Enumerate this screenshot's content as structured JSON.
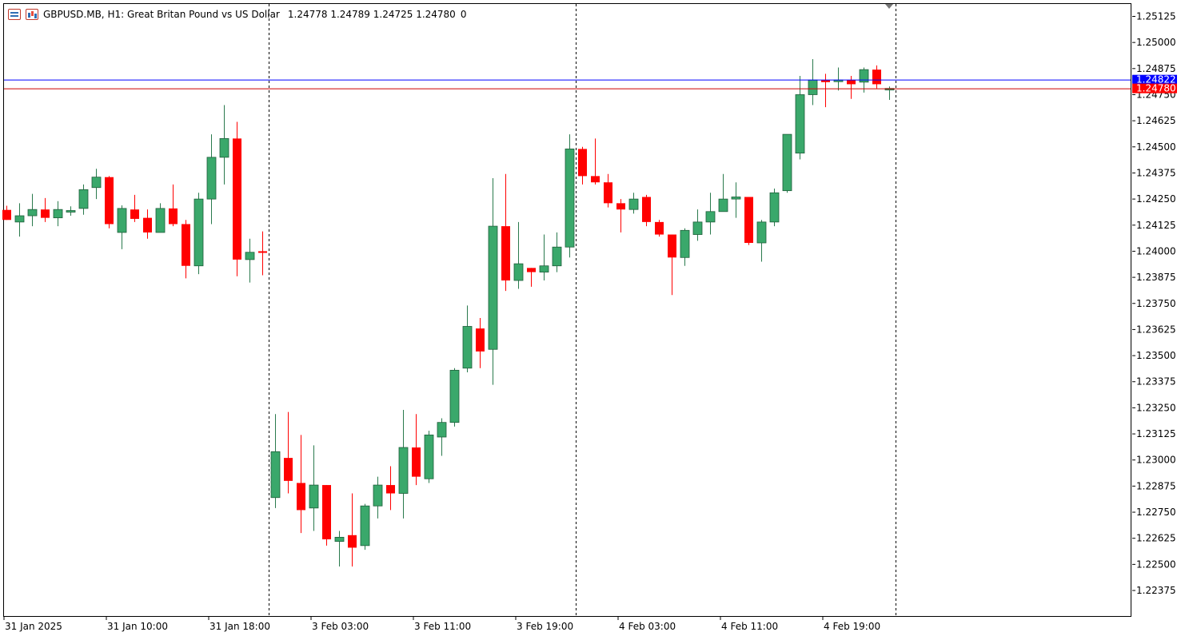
{
  "header": {
    "symbol_info": "GBPUSD.MB, H1:  Great Britan Pound vs US Dollar",
    "ohlc": "1.24778 1.24789 1.24725 1.24780",
    "volume": "0"
  },
  "colors": {
    "bull": "#3aa86b",
    "bear": "#ff0000",
    "bid_line": "#0000ff",
    "ask_line": "#cc0000",
    "bid_tag": "#0000ff",
    "ask_tag": "#ff0000"
  },
  "price_axis": {
    "labels": [
      "1.25125",
      "1.25000",
      "1.24875",
      "1.24750",
      "1.24625",
      "1.24500",
      "1.24375",
      "1.24250",
      "1.24125",
      "1.24000",
      "1.23875",
      "1.23750",
      "1.23625",
      "1.23500",
      "1.23375",
      "1.23250",
      "1.23125",
      "1.23000",
      "1.22875",
      "1.22750",
      "1.22625",
      "1.22500",
      "1.22375"
    ],
    "bid_tag": "1.24822",
    "ask_tag": "1.24780"
  },
  "time_axis": {
    "labels": [
      "31 Jan 2025",
      "31 Jan 10:00",
      "31 Jan 18:00",
      "3 Feb 03:00",
      "3 Feb 11:00",
      "3 Feb 19:00",
      "4 Feb 03:00",
      "4 Feb 11:00",
      "4 Feb 19:00"
    ]
  },
  "chart_data": {
    "type": "candlestick",
    "symbol": "GBPUSD.MB",
    "timeframe": "H1",
    "y_range": [
      1.223,
      1.2518
    ],
    "bid": 1.24822,
    "ask": 1.2478,
    "period_separators_after_index": [
      20,
      44,
      69
    ],
    "candles": [
      {
        "o": 1.24198,
        "h": 1.24218,
        "l": 1.2415,
        "c": 1.2415
      },
      {
        "o": 1.2414,
        "h": 1.2423,
        "l": 1.2407,
        "c": 1.2417
      },
      {
        "o": 1.2417,
        "h": 1.24275,
        "l": 1.2412,
        "c": 1.242
      },
      {
        "o": 1.242,
        "h": 1.24255,
        "l": 1.2414,
        "c": 1.2416
      },
      {
        "o": 1.2416,
        "h": 1.2424,
        "l": 1.2412,
        "c": 1.242
      },
      {
        "o": 1.24195,
        "h": 1.24215,
        "l": 1.2417,
        "c": 1.24195
      },
      {
        "o": 1.24205,
        "h": 1.2432,
        "l": 1.24175,
        "c": 1.24295
      },
      {
        "o": 1.24305,
        "h": 1.24395,
        "l": 1.2425,
        "c": 1.24355
      },
      {
        "o": 1.24355,
        "h": 1.2436,
        "l": 1.2411,
        "c": 1.2413
      },
      {
        "o": 1.2409,
        "h": 1.2422,
        "l": 1.2401,
        "c": 1.24205
      },
      {
        "o": 1.242,
        "h": 1.2427,
        "l": 1.2414,
        "c": 1.24155
      },
      {
        "o": 1.2416,
        "h": 1.242,
        "l": 1.2406,
        "c": 1.2409
      },
      {
        "o": 1.2409,
        "h": 1.2423,
        "l": 1.2409,
        "c": 1.24205
      },
      {
        "o": 1.24205,
        "h": 1.2432,
        "l": 1.2412,
        "c": 1.2413
      },
      {
        "o": 1.2413,
        "h": 1.2415,
        "l": 1.2387,
        "c": 1.2393
      },
      {
        "o": 1.2393,
        "h": 1.2428,
        "l": 1.2389,
        "c": 1.2425
      },
      {
        "o": 1.2425,
        "h": 1.2456,
        "l": 1.2413,
        "c": 1.2445
      },
      {
        "o": 1.2445,
        "h": 1.247,
        "l": 1.2432,
        "c": 1.2454
      },
      {
        "o": 1.2454,
        "h": 1.2462,
        "l": 1.2388,
        "c": 1.2396
      },
      {
        "o": 1.2396,
        "h": 1.2406,
        "l": 1.2385,
        "c": 1.23995
      },
      {
        "o": 1.24,
        "h": 1.24095,
        "l": 1.23885,
        "c": 1.23995
      },
      {
        "o": 1.2282,
        "h": 1.2322,
        "l": 1.2277,
        "c": 1.2304
      },
      {
        "o": 1.2301,
        "h": 1.2323,
        "l": 1.2284,
        "c": 1.229
      },
      {
        "o": 1.2289,
        "h": 1.2312,
        "l": 1.2265,
        "c": 1.2276
      },
      {
        "o": 1.2277,
        "h": 1.2307,
        "l": 1.2266,
        "c": 1.2288
      },
      {
        "o": 1.2288,
        "h": 1.2288,
        "l": 1.2259,
        "c": 1.2262
      },
      {
        "o": 1.2261,
        "h": 1.2266,
        "l": 1.2249,
        "c": 1.2263
      },
      {
        "o": 1.2264,
        "h": 1.2284,
        "l": 1.2249,
        "c": 1.2258
      },
      {
        "o": 1.2259,
        "h": 1.2279,
        "l": 1.2257,
        "c": 1.2278
      },
      {
        "o": 1.2278,
        "h": 1.2292,
        "l": 1.2272,
        "c": 1.2288
      },
      {
        "o": 1.2288,
        "h": 1.2297,
        "l": 1.2276,
        "c": 1.2284
      },
      {
        "o": 1.2284,
        "h": 1.2324,
        "l": 1.2272,
        "c": 1.2306
      },
      {
        "o": 1.2306,
        "h": 1.2322,
        "l": 1.2288,
        "c": 1.2292
      },
      {
        "o": 1.2291,
        "h": 1.2314,
        "l": 1.2289,
        "c": 1.2312
      },
      {
        "o": 1.2311,
        "h": 1.232,
        "l": 1.2302,
        "c": 1.2318
      },
      {
        "o": 1.2318,
        "h": 1.2344,
        "l": 1.2316,
        "c": 1.2343
      },
      {
        "o": 1.2344,
        "h": 1.2374,
        "l": 1.2342,
        "c": 1.2364
      },
      {
        "o": 1.2363,
        "h": 1.2368,
        "l": 1.2344,
        "c": 1.2352
      },
      {
        "o": 1.2353,
        "h": 1.2435,
        "l": 1.2336,
        "c": 1.2412
      },
      {
        "o": 1.2412,
        "h": 1.2437,
        "l": 1.2381,
        "c": 1.2386
      },
      {
        "o": 1.2386,
        "h": 1.2414,
        "l": 1.2382,
        "c": 1.2394
      },
      {
        "o": 1.2392,
        "h": 1.2392,
        "l": 1.2383,
        "c": 1.239
      },
      {
        "o": 1.239,
        "h": 1.2408,
        "l": 1.2386,
        "c": 1.2393
      },
      {
        "o": 1.2393,
        "h": 1.2409,
        "l": 1.239,
        "c": 1.2402
      },
      {
        "o": 1.2402,
        "h": 1.2456,
        "l": 1.2397,
        "c": 1.2449
      },
      {
        "o": 1.2449,
        "h": 1.245,
        "l": 1.2432,
        "c": 1.2436
      },
      {
        "o": 1.2436,
        "h": 1.2454,
        "l": 1.2432,
        "c": 1.2433
      },
      {
        "o": 1.2433,
        "h": 1.2437,
        "l": 1.2421,
        "c": 1.2423
      },
      {
        "o": 1.2423,
        "h": 1.2425,
        "l": 1.2409,
        "c": 1.242
      },
      {
        "o": 1.242,
        "h": 1.2428,
        "l": 1.2418,
        "c": 1.2425
      },
      {
        "o": 1.2426,
        "h": 1.2427,
        "l": 1.2412,
        "c": 1.2414
      },
      {
        "o": 1.2414,
        "h": 1.2415,
        "l": 1.2407,
        "c": 1.2408
      },
      {
        "o": 1.2408,
        "h": 1.2408,
        "l": 1.2379,
        "c": 1.2397
      },
      {
        "o": 1.2397,
        "h": 1.2411,
        "l": 1.2393,
        "c": 1.241
      },
      {
        "o": 1.2408,
        "h": 1.242,
        "l": 1.2405,
        "c": 1.2414
      },
      {
        "o": 1.2414,
        "h": 1.2428,
        "l": 1.2408,
        "c": 1.2419
      },
      {
        "o": 1.2419,
        "h": 1.2437,
        "l": 1.2419,
        "c": 1.2425
      },
      {
        "o": 1.2425,
        "h": 1.2433,
        "l": 1.2416,
        "c": 1.2426
      },
      {
        "o": 1.2426,
        "h": 1.2426,
        "l": 1.2403,
        "c": 1.2404
      },
      {
        "o": 1.2404,
        "h": 1.2415,
        "l": 1.2395,
        "c": 1.2414
      },
      {
        "o": 1.2414,
        "h": 1.243,
        "l": 1.2412,
        "c": 1.2428
      },
      {
        "o": 1.2429,
        "h": 1.2454,
        "l": 1.2428,
        "c": 1.2456
      },
      {
        "o": 1.2447,
        "h": 1.2484,
        "l": 1.2444,
        "c": 1.2475
      },
      {
        "o": 1.2475,
        "h": 1.2492,
        "l": 1.247,
        "c": 1.2482
      },
      {
        "o": 1.2482,
        "h": 1.2485,
        "l": 1.2469,
        "c": 1.2481
      },
      {
        "o": 1.2482,
        "h": 1.2488,
        "l": 1.2477,
        "c": 1.2482
      },
      {
        "o": 1.2482,
        "h": 1.2484,
        "l": 1.2473,
        "c": 1.248
      },
      {
        "o": 1.2481,
        "h": 1.2488,
        "l": 1.2476,
        "c": 1.2487
      },
      {
        "o": 1.2487,
        "h": 1.2489,
        "l": 1.2478,
        "c": 1.248
      },
      {
        "o": 1.2478,
        "h": 1.24789,
        "l": 1.24725,
        "c": 1.2478
      }
    ]
  }
}
